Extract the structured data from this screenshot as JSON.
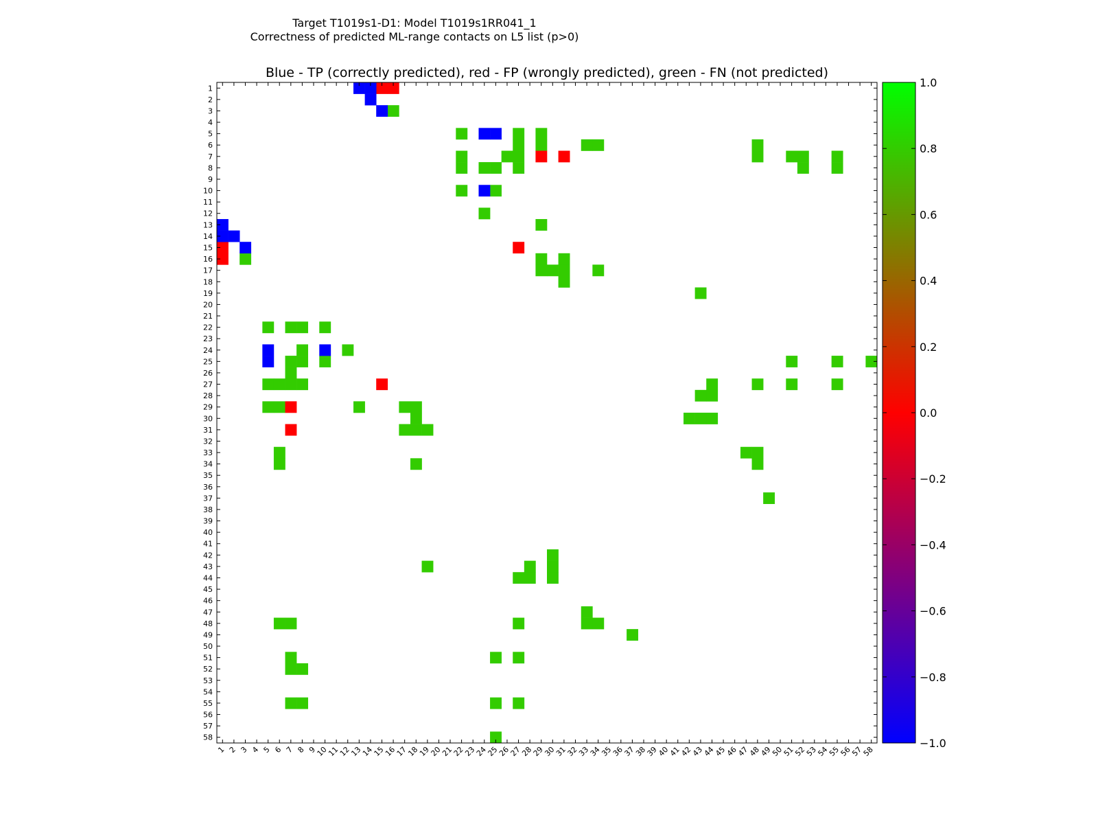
{
  "chart_data": {
    "type": "heatmap",
    "suptitle_line1": "Target T1019s1-D1: Model T1019s1RR041_1",
    "suptitle_line2": "Correctness of predicted ML-range contacts on L5 list (p>0)",
    "title": "Blue - TP (correctly predicted), red - FP (wrongly predicted), green - FN (not predicted)",
    "x_range": [
      1,
      58
    ],
    "y_range": [
      1,
      58
    ],
    "x_tick_labels": [
      "1",
      "2",
      "3",
      "4",
      "5",
      "6",
      "7",
      "8",
      "9",
      "10",
      "11",
      "12",
      "13",
      "14",
      "15",
      "16",
      "17",
      "18",
      "19",
      "20",
      "21",
      "22",
      "23",
      "24",
      "25",
      "26",
      "27",
      "28",
      "29",
      "30",
      "31",
      "32",
      "33",
      "34",
      "35",
      "36",
      "37",
      "38",
      "39",
      "40",
      "41",
      "42",
      "43",
      "44",
      "45",
      "46",
      "47",
      "48",
      "49",
      "50",
      "51",
      "52",
      "53",
      "54",
      "55",
      "56",
      "57",
      "58"
    ],
    "y_tick_labels": [
      "1",
      "2",
      "3",
      "4",
      "5",
      "6",
      "7",
      "8",
      "9",
      "10",
      "11",
      "12",
      "13",
      "14",
      "15",
      "16",
      "17",
      "18",
      "19",
      "20",
      "21",
      "22",
      "23",
      "24",
      "25",
      "26",
      "27",
      "28",
      "29",
      "30",
      "31",
      "32",
      "33",
      "34",
      "35",
      "36",
      "37",
      "38",
      "39",
      "40",
      "41",
      "42",
      "43",
      "44",
      "45",
      "46",
      "47",
      "48",
      "49",
      "50",
      "51",
      "52",
      "53",
      "54",
      "55",
      "56",
      "57",
      "58"
    ],
    "colorbar": {
      "min": -1.0,
      "max": 1.0,
      "tick_values": [
        1.0,
        0.8,
        0.6,
        0.4,
        0.2,
        0.0,
        -0.2,
        -0.4,
        -0.6,
        -0.8,
        -1.0
      ],
      "tick_labels": [
        "1.0",
        "0.8",
        "0.6",
        "0.4",
        "0.2",
        "0.0",
        "−0.2",
        "−0.4",
        "−0.6",
        "−0.8",
        "−1.0"
      ],
      "stops": [
        "#0000ff",
        "#ff0000",
        "#00ff00"
      ]
    },
    "legend": {
      "tp": {
        "value": -1.0,
        "color": "#0000ff"
      },
      "fp": {
        "value": 0.0,
        "color": "#ff0000"
      },
      "fn": {
        "value": 0.8,
        "color": "#33cc00"
      }
    },
    "cells": {
      "tp": [
        [
          1,
          13
        ],
        [
          1,
          14
        ],
        [
          2,
          14
        ],
        [
          3,
          15
        ],
        [
          5,
          24
        ],
        [
          5,
          25
        ],
        [
          10,
          24
        ],
        [
          13,
          1
        ],
        [
          14,
          1
        ],
        [
          14,
          2
        ],
        [
          15,
          3
        ],
        [
          24,
          5
        ],
        [
          25,
          5
        ],
        [
          24,
          10
        ]
      ],
      "fp": [
        [
          1,
          15
        ],
        [
          1,
          16
        ],
        [
          7,
          29
        ],
        [
          7,
          31
        ],
        [
          15,
          27
        ],
        [
          16,
          1
        ],
        [
          15,
          1
        ],
        [
          27,
          15
        ],
        [
          29,
          7
        ],
        [
          31,
          7
        ]
      ],
      "fn": [
        [
          3,
          16
        ],
        [
          16,
          3
        ],
        [
          5,
          22
        ],
        [
          5,
          27
        ],
        [
          5,
          29
        ],
        [
          6,
          27
        ],
        [
          6,
          29
        ],
        [
          6,
          33
        ],
        [
          6,
          34
        ],
        [
          6,
          48
        ],
        [
          7,
          22
        ],
        [
          7,
          26
        ],
        [
          7,
          27
        ],
        [
          7,
          48
        ],
        [
          7,
          51
        ],
        [
          7,
          52
        ],
        [
          7,
          55
        ],
        [
          8,
          22
        ],
        [
          8,
          24
        ],
        [
          8,
          25
        ],
        [
          8,
          27
        ],
        [
          8,
          52
        ],
        [
          8,
          55
        ],
        [
          10,
          22
        ],
        [
          10,
          25
        ],
        [
          12,
          24
        ],
        [
          13,
          29
        ],
        [
          16,
          29
        ],
        [
          16,
          31
        ],
        [
          17,
          29
        ],
        [
          17,
          30
        ],
        [
          17,
          31
        ],
        [
          17,
          34
        ],
        [
          18,
          31
        ],
        [
          19,
          43
        ],
        [
          22,
          5
        ],
        [
          22,
          7
        ],
        [
          22,
          8
        ],
        [
          22,
          10
        ],
        [
          24,
          8
        ],
        [
          24,
          12
        ],
        [
          25,
          7
        ],
        [
          25,
          8
        ],
        [
          25,
          10
        ],
        [
          25,
          51
        ],
        [
          25,
          55
        ],
        [
          25,
          58
        ],
        [
          26,
          7
        ],
        [
          27,
          5
        ],
        [
          27,
          6
        ],
        [
          27,
          7
        ],
        [
          27,
          8
        ],
        [
          27,
          44
        ],
        [
          27,
          48
        ],
        [
          27,
          51
        ],
        [
          27,
          55
        ],
        [
          28,
          43
        ],
        [
          28,
          44
        ],
        [
          29,
          5
        ],
        [
          29,
          6
        ],
        [
          29,
          13
        ],
        [
          29,
          17
        ],
        [
          29,
          18
        ],
        [
          30,
          18
        ],
        [
          30,
          42
        ],
        [
          30,
          43
        ],
        [
          30,
          44
        ],
        [
          31,
          17
        ],
        [
          31,
          18
        ],
        [
          31,
          19
        ],
        [
          33,
          6
        ],
        [
          33,
          47
        ],
        [
          33,
          48
        ],
        [
          34,
          6
        ],
        [
          34,
          18
        ],
        [
          34,
          48
        ],
        [
          37,
          49
        ],
        [
          42,
          30
        ],
        [
          43,
          19
        ],
        [
          43,
          28
        ],
        [
          43,
          30
        ],
        [
          44,
          27
        ],
        [
          44,
          28
        ],
        [
          44,
          30
        ],
        [
          47,
          33
        ],
        [
          48,
          6
        ],
        [
          48,
          7
        ],
        [
          48,
          27
        ],
        [
          48,
          33
        ],
        [
          48,
          34
        ],
        [
          49,
          37
        ],
        [
          51,
          7
        ],
        [
          51,
          25
        ],
        [
          51,
          27
        ],
        [
          52,
          7
        ],
        [
          52,
          8
        ],
        [
          55,
          7
        ],
        [
          55,
          8
        ],
        [
          55,
          25
        ],
        [
          55,
          27
        ],
        [
          58,
          25
        ]
      ]
    }
  }
}
